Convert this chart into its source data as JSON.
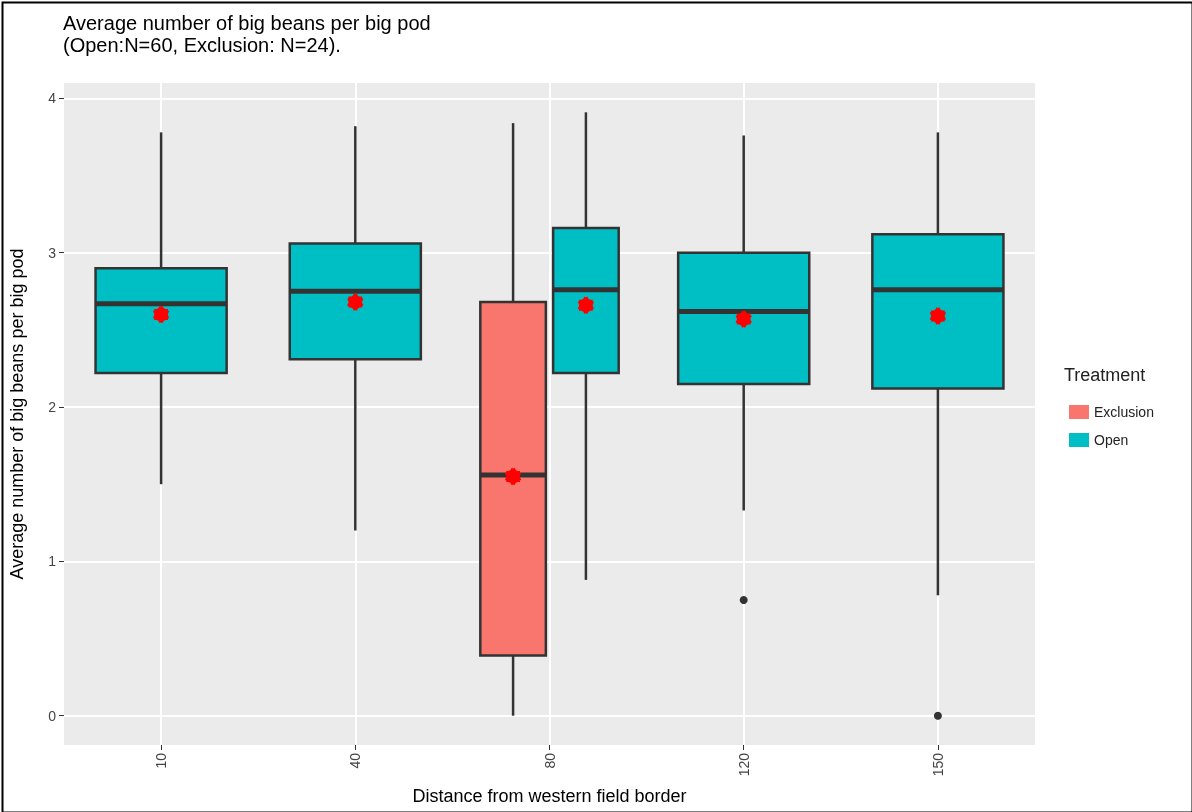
{
  "chart_data": {
    "type": "box",
    "title": "Average number of big beans per big pod",
    "subtitle": "(Open:N=60, Exclusion: N=24).",
    "xlabel": "Distance from western field border",
    "ylabel": "Average number of big beans per big pod",
    "legend_title": "Treatment",
    "legend": "right",
    "grid": true,
    "categories": [
      "10",
      "40",
      "80",
      "120",
      "150"
    ],
    "ylim": [
      -0.19,
      4.1
    ],
    "yticks": [
      0,
      1,
      2,
      3,
      4
    ],
    "series": [
      {
        "name": "Exclusion",
        "color": "#f8766d",
        "boxes": [
          null,
          null,
          {
            "low": 0,
            "q1": 0.39,
            "median": 1.56,
            "q3": 2.68,
            "high": 3.84,
            "mean": 1.55
          },
          null,
          null
        ]
      },
      {
        "name": "Open",
        "color": "#00bfc4",
        "boxes": [
          {
            "low": 1.5,
            "q1": 2.22,
            "median": 2.67,
            "q3": 2.9,
            "high": 3.78,
            "mean": 2.6
          },
          {
            "low": 1.2,
            "q1": 2.31,
            "median": 2.75,
            "q3": 3.06,
            "high": 3.82,
            "mean": 2.68
          },
          {
            "low": 0.88,
            "q1": 2.22,
            "median": 2.76,
            "q3": 3.16,
            "high": 3.91,
            "mean": 2.66
          },
          {
            "low": 1.33,
            "q1": 2.15,
            "median": 2.62,
            "q3": 3.0,
            "high": 3.76,
            "mean": 2.57,
            "outliers": [
              0.75
            ]
          },
          {
            "low": 0.78,
            "q1": 2.12,
            "median": 2.76,
            "q3": 3.12,
            "high": 3.78,
            "mean": 2.59,
            "outliers": [
              0
            ]
          }
        ]
      }
    ]
  }
}
